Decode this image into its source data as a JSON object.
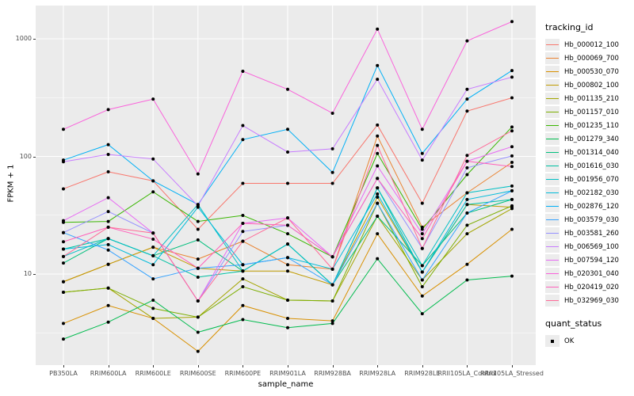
{
  "figure": {
    "y_axis": {
      "title": "FPKM + 1",
      "ticks": [
        10,
        100,
        1000
      ]
    },
    "x_axis": {
      "title": "sample_name"
    },
    "panel_bg": "#EBEBEB",
    "grid_color": "#FFFFFF",
    "tick_text_color": "#4D4D4D"
  },
  "legend": {
    "tracking_title": "tracking_id",
    "quant_title": "quant_status",
    "quant_items": [
      {
        "label": "OK",
        "marker": "black-square"
      }
    ]
  },
  "chart_data": {
    "type": "line",
    "title": "",
    "xlabel": "sample_name",
    "ylabel": "FPKM + 1",
    "y_scale": "log10",
    "ylim": [
      1.7,
      2000
    ],
    "y_major_ticks": [
      10,
      100,
      1000
    ],
    "y_minor_ticks": [
      3.162,
      31.62,
      316.2
    ],
    "grid": "white major and minor, gray panel",
    "legend_position": "right",
    "point_color": "#000000",
    "x": [
      "PB350LA",
      "RRIM600LA",
      "RRIM600LE",
      "RRIM600SE",
      "RRIM600PE",
      "RRIM901LA",
      "RRIM928BA",
      "RRIM928LA",
      "RRIM928LE",
      "RRII105LA_Control",
      "RRII105LA_Stressed"
    ],
    "series": [
      {
        "name": "Hb_000012_100",
        "color": "#F8766D",
        "values": [
          53,
          74,
          62,
          24,
          59,
          59,
          59,
          185,
          40,
          243,
          315
        ]
      },
      {
        "name": "Hb_000069_700",
        "color": "#EA8331",
        "values": [
          8.6,
          12.1,
          16.9,
          13.4,
          19,
          12,
          11,
          149,
          25,
          49,
          89
        ]
      },
      {
        "name": "Hb_000530_070",
        "color": "#D89000",
        "values": [
          3.8,
          5.4,
          4.2,
          2.2,
          5.4,
          4.2,
          4.0,
          22,
          6.5,
          12.1,
          24
        ]
      },
      {
        "name": "Hb_000802_100",
        "color": "#C09B00",
        "values": [
          8.6,
          12.1,
          16.9,
          11.2,
          10.6,
          10.6,
          8.1,
          45,
          10.4,
          39,
          37
        ]
      },
      {
        "name": "Hb_001135_210",
        "color": "#A3A500",
        "values": [
          7.0,
          7.6,
          4.2,
          4.3,
          9.1,
          6.0,
          5.9,
          31,
          8.9,
          22,
          36
        ]
      },
      {
        "name": "Hb_001157_010",
        "color": "#7CAE00",
        "values": [
          7.0,
          7.6,
          5.1,
          4.3,
          7.8,
          6.0,
          5.9,
          40,
          7.8,
          26,
          38
        ]
      },
      {
        "name": "Hb_001235_110",
        "color": "#39B600",
        "values": [
          27.5,
          28,
          50,
          28,
          31.5,
          22,
          14,
          106,
          24,
          70,
          178
        ]
      },
      {
        "name": "Hb_001279_340",
        "color": "#00BB4E",
        "values": [
          2.8,
          3.9,
          6.0,
          3.2,
          4.1,
          3.5,
          3.8,
          13.5,
          4.6,
          8.9,
          9.6
        ]
      },
      {
        "name": "Hb_001314_040",
        "color": "#00BF7D",
        "values": [
          12.4,
          20,
          14.3,
          19.5,
          10.6,
          18,
          8.1,
          31,
          11.8,
          33,
          43
        ]
      },
      {
        "name": "Hb_001616_030",
        "color": "#00C1A3",
        "values": [
          16.3,
          20,
          14.3,
          9.4,
          10.6,
          18,
          8.1,
          54,
          10.4,
          39,
          43
        ]
      },
      {
        "name": "Hb_001956_070",
        "color": "#00BFC4",
        "values": [
          14.1,
          20,
          14.3,
          39,
          10.6,
          18,
          8.1,
          54,
          11.8,
          49,
          56
        ]
      },
      {
        "name": "Hb_002182_030",
        "color": "#00BBDA",
        "values": [
          16.3,
          17.8,
          12,
          37,
          12,
          13.8,
          11,
          48,
          10.4,
          43,
          51
        ]
      },
      {
        "name": "Hb_002876_120",
        "color": "#00B0F6",
        "values": [
          93,
          126,
          62,
          39,
          139,
          170,
          73,
          593,
          106,
          307,
          537
        ]
      },
      {
        "name": "Hb_003579_030",
        "color": "#35A2FF",
        "values": [
          22.5,
          16,
          9.1,
          11.2,
          12,
          13.8,
          8.1,
          40,
          8.9,
          33,
          51
        ]
      },
      {
        "name": "Hb_003581_260",
        "color": "#9590FF",
        "values": [
          22.5,
          34,
          22.3,
          5.9,
          23,
          26,
          14,
          65,
          16.5,
          80,
          101
        ]
      },
      {
        "name": "Hb_006569_100",
        "color": "#C77CFF",
        "values": [
          90,
          104,
          95,
          38,
          183,
          109,
          116,
          453,
          93,
          372,
          472
        ]
      },
      {
        "name": "Hb_007594_120",
        "color": "#E76BF3",
        "values": [
          28.4,
          44.6,
          22.3,
          5.9,
          27,
          30,
          14,
          83,
          22,
          91,
          121
        ]
      },
      {
        "name": "Hb_020301_040",
        "color": "#FA62DB",
        "values": [
          170,
          250,
          307,
          71,
          530,
          372,
          233,
          1210,
          170,
          960,
          1400
        ]
      },
      {
        "name": "Hb_020419_020",
        "color": "#FF62BC",
        "values": [
          18.8,
          25,
          19.8,
          11.2,
          27,
          26,
          14,
          65,
          20,
          91,
          82
        ]
      },
      {
        "name": "Hb_032969_030",
        "color": "#FF6A98",
        "values": [
          14.1,
          25,
          22.3,
          5.9,
          19,
          30,
          11,
          124,
          16.5,
          102,
          165
        ]
      }
    ]
  }
}
